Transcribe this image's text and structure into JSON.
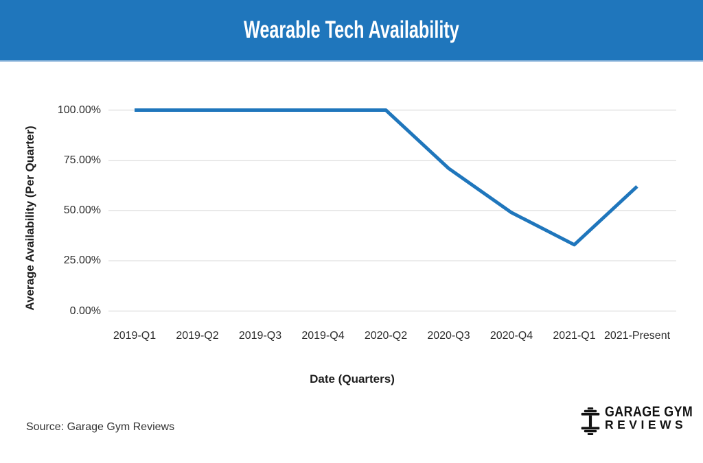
{
  "header": {
    "title": "Wearable Tech Availability",
    "bg_color": "#1f76bc",
    "text_color": "#ffffff"
  },
  "chart_data": {
    "type": "line",
    "title": "Wearable Tech Availability",
    "categories": [
      "2019-Q1",
      "2019-Q2",
      "2019-Q3",
      "2019-Q4",
      "2020-Q2",
      "2020-Q3",
      "2020-Q4",
      "2021-Q1",
      "2021-Present"
    ],
    "series": [
      {
        "name": "Average Availability",
        "values": [
          100,
          100,
          100,
          100,
          100,
          71,
          49,
          33,
          62
        ]
      }
    ],
    "xlabel": "Date (Quarters)",
    "ylabel": "Average Availability (Per Quarter)",
    "y_ticks": [
      "100.00%",
      "75.00%",
      "50.00%",
      "25.00%",
      "0.00%"
    ],
    "ylim": [
      0,
      100
    ],
    "grid": "horizontal",
    "legend": "none",
    "line_color": "#1f76bc",
    "grid_color": "#e2e2e2",
    "tick_text_color": "#2d2d2d"
  },
  "footer": {
    "source": "Source: Garage Gym Reviews"
  },
  "logo": {
    "line1": "GARAGE GYM",
    "line2": "REVIEWS",
    "icon": "dumbbell-icon",
    "color": "#111111"
  }
}
